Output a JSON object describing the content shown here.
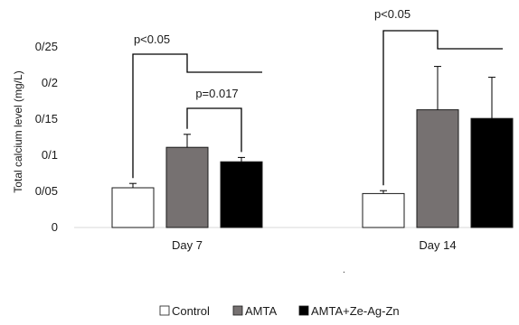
{
  "chart_data": {
    "type": "bar",
    "title": "",
    "xlabel": "",
    "ylabel": "Total calcium level (mg/L)",
    "ylim": [
      0,
      0.25
    ],
    "yticks": [
      0,
      0.05,
      0.1,
      0.15,
      0.2,
      0.25
    ],
    "ytick_labels": [
      "0",
      "0/05",
      "0/1",
      "0/15",
      "0/2",
      "0/25"
    ],
    "categories": [
      "Day 7",
      "Day 14"
    ],
    "series": [
      {
        "name": "Control",
        "values": [
          0.055,
          0.047
        ],
        "errors": [
          0.006,
          0.004
        ],
        "color": "#ffffff"
      },
      {
        "name": "AMTA",
        "values": [
          0.111,
          0.163
        ],
        "errors": [
          0.018,
          0.06
        ],
        "color": "#767171"
      },
      {
        "name": "AMTA+Ze-Ag-Zn",
        "values": [
          0.091,
          0.151
        ],
        "errors": [
          0.006,
          0.057
        ],
        "color": "#000000"
      }
    ],
    "annotations": [
      {
        "text": "p<0.05",
        "from_series": 0,
        "to_series": [
          1,
          2
        ],
        "category": 0
      },
      {
        "text": "p=0.017",
        "from_series": 1,
        "to_series": [
          2
        ],
        "category": 0
      },
      {
        "text": "p<0.05",
        "from_series": 0,
        "to_series": [
          1,
          2
        ],
        "category": 1
      }
    ],
    "legend_position": "bottom",
    "grid": false
  }
}
